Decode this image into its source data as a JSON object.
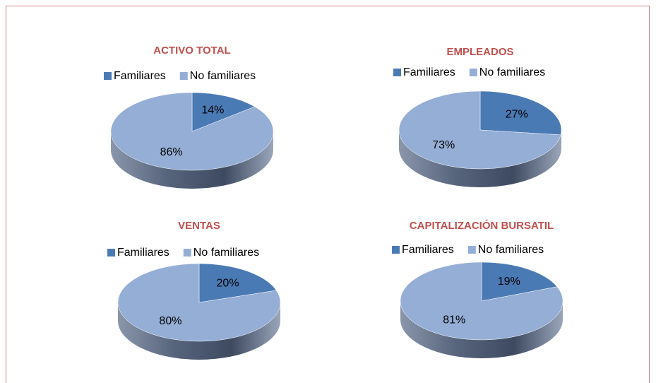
{
  "chart_data": [
    {
      "type": "pie",
      "title": "ACTIVO TOTAL",
      "categories": [
        "Familiares",
        "No familiares"
      ],
      "values": [
        14,
        86
      ],
      "value_labels": [
        "14%",
        "86%"
      ],
      "colors": [
        "#4a7ab4",
        "#95aed6"
      ],
      "legend": "top"
    },
    {
      "type": "pie",
      "title": "EMPLEADOS",
      "categories": [
        "Familiares",
        "No familiares"
      ],
      "values": [
        27,
        73
      ],
      "value_labels": [
        "27%",
        "73%"
      ],
      "colors": [
        "#4a7ab4",
        "#95aed6"
      ],
      "legend": "top"
    },
    {
      "type": "pie",
      "title": "VENTAS",
      "categories": [
        "Familiares",
        "No familiares"
      ],
      "values": [
        20,
        80
      ],
      "value_labels": [
        "20%",
        "80%"
      ],
      "colors": [
        "#4a7ab4",
        "#95aed6"
      ],
      "legend": "top"
    },
    {
      "type": "pie",
      "title": "CAPITALIZACIÓN BURSATIL",
      "categories": [
        "Familiares",
        "No familiares"
      ],
      "values": [
        19,
        81
      ],
      "value_labels": [
        "19%",
        "81%"
      ],
      "colors": [
        "#4a7ab4",
        "#95aed6"
      ],
      "legend": "top"
    }
  ]
}
